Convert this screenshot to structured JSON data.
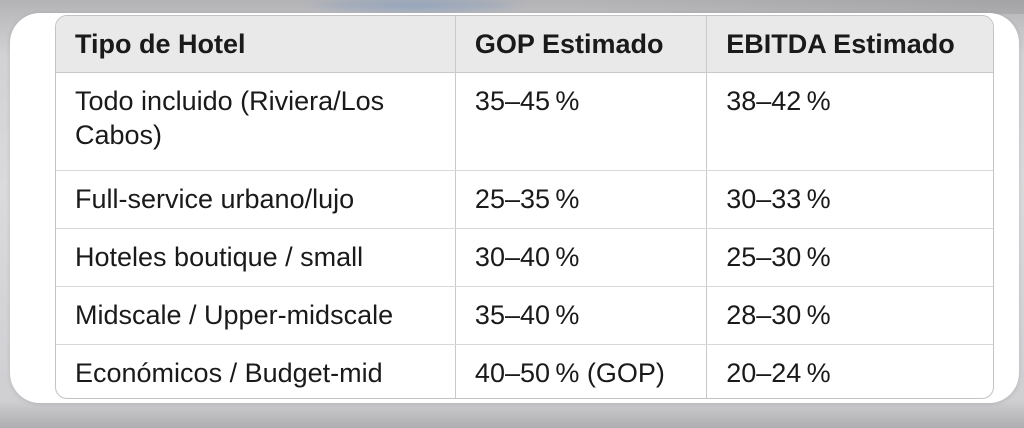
{
  "colors": {
    "card-bg": "#ffffff",
    "header-bg": "#e9e9ea",
    "table-border": "#c3c3c5",
    "column-divider": "#c9c9cb",
    "row-divider": "#d8d8d9",
    "text": "#1a1a1a",
    "bg-top": "#b3b3b6",
    "bg-mid": "#dadadc",
    "bg-bottom": "#aeaeb1",
    "blue-smudge": "#7896be"
  },
  "table": {
    "columns": [
      "Tipo de Hotel",
      "GOP Estimado",
      "EBITDA Estimado"
    ],
    "rows": [
      [
        "Todo incluido (Riviera/Los Cabos)",
        "35–45 %",
        "38–42 %"
      ],
      [
        "Full-service urbano/lujo",
        "25–35 %",
        "30–33 %"
      ],
      [
        "Hoteles boutique / small",
        "30–40 %",
        "25–30 %"
      ],
      [
        "Midscale / Upper-midscale",
        "35–40 %",
        "28–30 %"
      ],
      [
        "Económicos / Budget-mid",
        "40–50 % (GOP)",
        "20–24 %"
      ]
    ]
  }
}
